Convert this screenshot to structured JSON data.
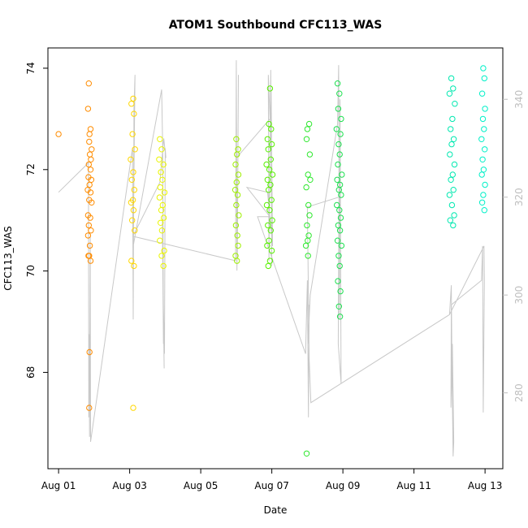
{
  "chart_data": {
    "type": "scatter",
    "title": "ATOM1 Southbound CFC113_WAS",
    "xlabel": "Date",
    "ylabel": "CFC113_WAS",
    "x_ticks": [
      {
        "day": 1,
        "label": "Aug 01"
      },
      {
        "day": 3,
        "label": "Aug 03"
      },
      {
        "day": 5,
        "label": "Aug 05"
      },
      {
        "day": 7,
        "label": "Aug 07"
      },
      {
        "day": 9,
        "label": "Aug 09"
      },
      {
        "day": 11,
        "label": "Aug 11"
      },
      {
        "day": 13,
        "label": "Aug 13"
      }
    ],
    "y_ticks": [
      {
        "value": 68,
        "label": "68"
      },
      {
        "value": 70,
        "label": "70"
      },
      {
        "value": 72,
        "label": "72"
      },
      {
        "value": 74,
        "label": "74"
      }
    ],
    "y2_ticks": [
      {
        "value": 280,
        "label": "280"
      },
      {
        "value": 300,
        "label": "300"
      },
      {
        "value": 320,
        "label": "320"
      },
      {
        "value": 340,
        "label": "340"
      }
    ],
    "xlim": [
      0.7,
      13.5
    ],
    "ylim": [
      66.1,
      74.4
    ],
    "y2lim": [
      264.5,
      350.5
    ],
    "grid": false,
    "colors": {
      "line": "#c8c8c8",
      "right_axis": "#bebebe",
      "frame": "#000000"
    },
    "series": [
      {
        "color": "#ff8c00",
        "points": [
          [
            1.0,
            72.7
          ],
          [
            1.85,
            73.7
          ],
          [
            1.83,
            73.2
          ],
          [
            1.9,
            72.8
          ],
          [
            1.87,
            72.7
          ],
          [
            1.86,
            72.55
          ],
          [
            1.93,
            72.4
          ],
          [
            1.88,
            72.3
          ],
          [
            1.91,
            72.2
          ],
          [
            1.85,
            72.1
          ],
          [
            1.9,
            72.0
          ],
          [
            1.84,
            71.85
          ],
          [
            1.92,
            71.8
          ],
          [
            1.87,
            71.7
          ],
          [
            1.82,
            71.6
          ],
          [
            1.9,
            71.55
          ],
          [
            1.86,
            71.4
          ],
          [
            1.93,
            71.35
          ],
          [
            1.83,
            71.1
          ],
          [
            1.89,
            71.05
          ],
          [
            1.85,
            70.9
          ],
          [
            1.91,
            70.8
          ],
          [
            1.83,
            70.7
          ],
          [
            1.88,
            70.5
          ],
          [
            1.86,
            70.3
          ],
          [
            1.9,
            70.2
          ],
          [
            1.84,
            70.3
          ],
          [
            1.87,
            68.4
          ],
          [
            1.86,
            67.3
          ]
        ]
      },
      {
        "color": "#ffd700",
        "points": [
          [
            3.1,
            73.4
          ],
          [
            3.05,
            73.3
          ],
          [
            3.12,
            73.1
          ],
          [
            3.08,
            72.7
          ],
          [
            3.15,
            72.4
          ],
          [
            3.03,
            72.2
          ],
          [
            3.1,
            71.95
          ],
          [
            3.06,
            71.8
          ],
          [
            3.13,
            71.6
          ],
          [
            3.09,
            71.4
          ],
          [
            3.04,
            71.35
          ],
          [
            3.11,
            71.2
          ],
          [
            3.07,
            71.0
          ],
          [
            3.14,
            70.8
          ],
          [
            3.05,
            70.2
          ],
          [
            3.12,
            70.1
          ],
          [
            3.1,
            67.3
          ]
        ]
      },
      {
        "color": "#eaf500",
        "points": [
          [
            3.85,
            72.6
          ],
          [
            3.9,
            72.4
          ],
          [
            3.83,
            72.2
          ],
          [
            3.95,
            72.1
          ],
          [
            3.88,
            71.95
          ],
          [
            3.92,
            71.8
          ],
          [
            3.86,
            71.65
          ],
          [
            3.98,
            71.55
          ],
          [
            3.84,
            71.45
          ],
          [
            3.93,
            71.3
          ],
          [
            3.89,
            71.2
          ],
          [
            3.96,
            71.05
          ],
          [
            3.87,
            70.95
          ],
          [
            3.91,
            70.8
          ],
          [
            3.85,
            70.6
          ],
          [
            3.97,
            70.4
          ],
          [
            3.9,
            70.3
          ],
          [
            3.95,
            70.1
          ]
        ]
      },
      {
        "color": "#9ef000",
        "points": [
          [
            6.0,
            72.6
          ],
          [
            6.05,
            72.4
          ],
          [
            6.02,
            72.3
          ],
          [
            5.98,
            72.1
          ],
          [
            6.06,
            71.9
          ],
          [
            6.01,
            71.75
          ],
          [
            5.97,
            71.6
          ],
          [
            6.04,
            71.5
          ],
          [
            6.0,
            71.3
          ],
          [
            6.07,
            71.1
          ],
          [
            5.99,
            70.9
          ],
          [
            6.03,
            70.7
          ],
          [
            6.05,
            70.5
          ],
          [
            5.98,
            70.3
          ],
          [
            6.02,
            70.2
          ]
        ]
      },
      {
        "color": "#57f000",
        "points": [
          [
            6.95,
            73.6
          ],
          [
            6.92,
            72.9
          ],
          [
            6.98,
            72.8
          ],
          [
            6.88,
            72.6
          ],
          [
            7.0,
            72.5
          ],
          [
            6.9,
            72.4
          ],
          [
            6.97,
            72.2
          ],
          [
            6.85,
            72.1
          ],
          [
            6.93,
            72.0
          ],
          [
            7.02,
            71.9
          ],
          [
            6.88,
            71.8
          ],
          [
            6.96,
            71.7
          ],
          [
            6.91,
            71.6
          ],
          [
            6.99,
            71.4
          ],
          [
            6.86,
            71.3
          ],
          [
            6.94,
            71.2
          ],
          [
            7.01,
            71.0
          ],
          [
            6.89,
            70.9
          ],
          [
            6.97,
            70.8
          ],
          [
            6.92,
            70.6
          ],
          [
            6.87,
            70.5
          ],
          [
            7.0,
            70.4
          ],
          [
            6.95,
            70.2
          ],
          [
            6.9,
            70.1
          ]
        ]
      },
      {
        "color": "#2ee82e",
        "points": [
          [
            8.05,
            72.9
          ],
          [
            8.0,
            72.8
          ],
          [
            7.98,
            72.6
          ],
          [
            8.07,
            72.3
          ],
          [
            8.02,
            71.9
          ],
          [
            8.08,
            71.8
          ],
          [
            7.97,
            71.65
          ],
          [
            8.03,
            71.3
          ],
          [
            8.06,
            71.1
          ],
          [
            7.99,
            70.9
          ],
          [
            8.04,
            70.7
          ],
          [
            8.01,
            70.6
          ],
          [
            7.96,
            70.5
          ],
          [
            8.02,
            70.3
          ],
          [
            7.98,
            66.4
          ]
        ]
      },
      {
        "color": "#1ee050",
        "points": [
          [
            8.85,
            73.7
          ],
          [
            8.9,
            73.5
          ],
          [
            8.87,
            73.2
          ],
          [
            8.95,
            73.0
          ],
          [
            8.82,
            72.8
          ],
          [
            8.93,
            72.7
          ],
          [
            8.88,
            72.5
          ],
          [
            8.91,
            72.3
          ],
          [
            8.86,
            72.1
          ],
          [
            8.97,
            71.9
          ],
          [
            8.84,
            71.8
          ],
          [
            8.92,
            71.7
          ],
          [
            8.89,
            71.6
          ],
          [
            8.95,
            71.5
          ],
          [
            8.83,
            71.3
          ],
          [
            8.9,
            71.2
          ],
          [
            8.94,
            71.05
          ],
          [
            8.87,
            70.9
          ],
          [
            8.92,
            70.8
          ],
          [
            8.85,
            70.6
          ],
          [
            8.96,
            70.5
          ],
          [
            8.88,
            70.3
          ],
          [
            8.91,
            70.1
          ],
          [
            8.86,
            69.8
          ],
          [
            8.93,
            69.6
          ],
          [
            8.89,
            69.3
          ],
          [
            8.92,
            69.1
          ]
        ]
      },
      {
        "color": "#00e8b0",
        "points": [
          [
            12.05,
            73.8
          ],
          [
            12.1,
            73.6
          ],
          [
            12.0,
            73.5
          ],
          [
            12.15,
            73.3
          ],
          [
            12.08,
            73.0
          ],
          [
            12.03,
            72.8
          ],
          [
            12.12,
            72.6
          ],
          [
            12.06,
            72.5
          ],
          [
            12.01,
            72.3
          ],
          [
            12.14,
            72.1
          ],
          [
            12.09,
            71.9
          ],
          [
            12.04,
            71.8
          ],
          [
            12.11,
            71.6
          ],
          [
            12.0,
            71.5
          ],
          [
            12.07,
            71.3
          ],
          [
            12.13,
            71.1
          ],
          [
            12.02,
            71.0
          ],
          [
            12.1,
            70.9
          ]
        ]
      },
      {
        "color": "#00f0c8",
        "points": [
          [
            12.95,
            74.0
          ],
          [
            12.98,
            73.8
          ],
          [
            12.92,
            73.5
          ],
          [
            13.0,
            73.2
          ],
          [
            12.94,
            73.0
          ],
          [
            12.97,
            72.8
          ],
          [
            12.9,
            72.6
          ],
          [
            12.99,
            72.4
          ],
          [
            12.93,
            72.2
          ],
          [
            12.96,
            72.0
          ],
          [
            12.91,
            71.9
          ],
          [
            13.0,
            71.7
          ],
          [
            12.95,
            71.5
          ],
          [
            12.92,
            71.35
          ],
          [
            12.98,
            71.2
          ]
        ]
      }
    ],
    "line_series": {
      "axis": "right",
      "points": [
        [
          1.0,
          321
        ],
        [
          1.84,
          327
        ],
        [
          1.85,
          275
        ],
        [
          1.86,
          292
        ],
        [
          1.87,
          271
        ],
        [
          1.88,
          290
        ],
        [
          1.89,
          312
        ],
        [
          1.9,
          270
        ],
        [
          3.08,
          330
        ],
        [
          3.1,
          295
        ],
        [
          3.12,
          338
        ],
        [
          3.15,
          345
        ],
        [
          3.1,
          310
        ],
        [
          3.9,
          342
        ],
        [
          3.93,
          330
        ],
        [
          3.95,
          290
        ],
        [
          3.92,
          315
        ],
        [
          3.97,
          285
        ],
        [
          3.94,
          300
        ],
        [
          3.98,
          288
        ],
        [
          4.0,
          330
        ],
        [
          4.02,
          328
        ],
        [
          3.96,
          332
        ],
        [
          3.85,
          323
        ],
        [
          3.09,
          312
        ],
        [
          5.98,
          307
        ],
        [
          6.0,
          348
        ],
        [
          6.02,
          305
        ],
        [
          6.04,
          320
        ],
        [
          6.06,
          345
        ],
        [
          6.03,
          308
        ],
        [
          6.0,
          328
        ],
        [
          6.95,
          336
        ],
        [
          6.9,
          345
        ],
        [
          6.92,
          307
        ],
        [
          6.97,
          346
        ],
        [
          7.0,
          306
        ],
        [
          6.98,
          342
        ],
        [
          7.02,
          310
        ],
        [
          6.88,
          321
        ],
        [
          6.3,
          322
        ],
        [
          6.95,
          316
        ],
        [
          6.6,
          316
        ],
        [
          7.95,
          288
        ],
        [
          8.0,
          303
        ],
        [
          8.03,
          275
        ],
        [
          8.05,
          298
        ],
        [
          8.02,
          290
        ],
        [
          8.08,
          300
        ],
        [
          8.85,
          335
        ],
        [
          8.88,
          347
        ],
        [
          8.9,
          295
        ],
        [
          8.92,
          340
        ],
        [
          8.95,
          282
        ],
        [
          8.87,
          290
        ],
        [
          8.89,
          320
        ],
        [
          8.0,
          318
        ],
        [
          8.05,
          287
        ],
        [
          8.1,
          278
        ],
        [
          12.0,
          296
        ],
        [
          12.05,
          302
        ],
        [
          12.07,
          285
        ],
        [
          12.1,
          267
        ],
        [
          12.12,
          270
        ],
        [
          12.08,
          290
        ],
        [
          12.04,
          277
        ],
        [
          12.05,
          298
        ],
        [
          12.9,
          303
        ],
        [
          12.93,
          310
        ],
        [
          12.95,
          276
        ],
        [
          12.98,
          303
        ],
        [
          12.97,
          310
        ],
        [
          12.0,
          296
        ]
      ]
    }
  }
}
